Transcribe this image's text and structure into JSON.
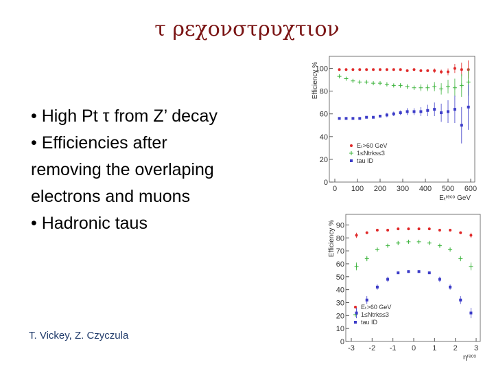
{
  "slide": {
    "title": "τ ρεχονστρυχτιον",
    "lines": [
      "• High Pt τ from Z’ decay",
      "• Efficiencies after",
      "removing the overlaping",
      "electrons and muons",
      "• Hadronic taus"
    ],
    "footer": "T. Vickey, Z. Czyczula"
  },
  "chart_data": [
    {
      "type": "scatter",
      "x_label": "Eₜʳᵉᶜᵒ GeV",
      "y_label": "Efficiency %",
      "x": [
        20,
        50,
        80,
        110,
        140,
        170,
        200,
        230,
        260,
        290,
        320,
        350,
        380,
        410,
        440,
        470,
        500,
        530,
        560,
        590
      ],
      "series": [
        {
          "name": "Eₜ>60 GeV",
          "color": "#e02828",
          "marker": "circle",
          "values": [
            99,
            99,
            99,
            99,
            99,
            99,
            99,
            99,
            99,
            99,
            98,
            99,
            98,
            98,
            98,
            97,
            97,
            100,
            99,
            99
          ],
          "errors": [
            0.5,
            0.5,
            0.5,
            0.5,
            0.5,
            0.5,
            0.5,
            0.5,
            0.5,
            0.5,
            1,
            1,
            1,
            1,
            2,
            2,
            3,
            4,
            6,
            8
          ]
        },
        {
          "name": "1≤Ntrks≤3",
          "color": "#3cb43c",
          "marker": "plus",
          "values": [
            93,
            91,
            89,
            88,
            88,
            87,
            87,
            86,
            85,
            85,
            84,
            83,
            83,
            83,
            84,
            82,
            84,
            83,
            85,
            88
          ],
          "errors": [
            1,
            1,
            1,
            1,
            1,
            1,
            1,
            1,
            1,
            2,
            2,
            2,
            3,
            3,
            4,
            5,
            6,
            8,
            10,
            12
          ]
        },
        {
          "name": "tau ID",
          "color": "#3c3cc8",
          "marker": "square",
          "values": [
            56,
            56,
            56,
            56,
            57,
            57,
            58,
            59,
            60,
            61,
            62,
            62,
            62,
            63,
            64,
            61,
            62,
            64,
            50,
            66
          ],
          "errors": [
            1,
            1,
            1,
            1,
            1,
            1,
            1,
            2,
            2,
            2,
            3,
            3,
            4,
            5,
            6,
            8,
            10,
            12,
            16,
            20
          ]
        }
      ],
      "xlim": [
        0,
        600
      ],
      "ylim": [
        0,
        107
      ],
      "xticks": [
        0,
        100,
        200,
        300,
        400,
        500,
        600
      ],
      "yticks": [
        0,
        20,
        40,
        60,
        80,
        100
      ]
    },
    {
      "type": "scatter",
      "x_label": "ηʳᵉᶜᵒ",
      "y_label": "Efficiency %",
      "x": [
        -2.75,
        -2.25,
        -1.75,
        -1.25,
        -0.75,
        -0.25,
        0.25,
        0.75,
        1.25,
        1.75,
        2.25,
        2.75
      ],
      "series": [
        {
          "name": "Eₜ>60 GeV",
          "color": "#e02828",
          "marker": "circle",
          "values": [
            82,
            84,
            86,
            86,
            87,
            87,
            87,
            87,
            86,
            86,
            84,
            82
          ],
          "errors": [
            2,
            1,
            1,
            1,
            1,
            1,
            1,
            1,
            1,
            1,
            1,
            2
          ]
        },
        {
          "name": "1≤Ntrks≤3",
          "color": "#3cb43c",
          "marker": "plus",
          "values": [
            58,
            64,
            71,
            74,
            76,
            77,
            77,
            76,
            74,
            71,
            64,
            58
          ],
          "errors": [
            3,
            2,
            1,
            1,
            1,
            1,
            1,
            1,
            1,
            1,
            2,
            3
          ]
        },
        {
          "name": "tau ID",
          "color": "#3c3cc8",
          "marker": "square",
          "values": [
            22,
            32,
            42,
            48,
            53,
            54,
            54,
            53,
            48,
            42,
            32,
            22
          ],
          "errors": [
            4,
            3,
            2,
            2,
            1,
            1,
            1,
            1,
            2,
            2,
            3,
            4
          ]
        }
      ],
      "xlim": [
        -3,
        3
      ],
      "ylim": [
        0,
        95
      ],
      "xticks": [
        -3,
        -2,
        -1,
        0,
        1,
        2,
        3
      ],
      "yticks": [
        0,
        10,
        20,
        30,
        40,
        50,
        60,
        70,
        80,
        90
      ]
    }
  ]
}
